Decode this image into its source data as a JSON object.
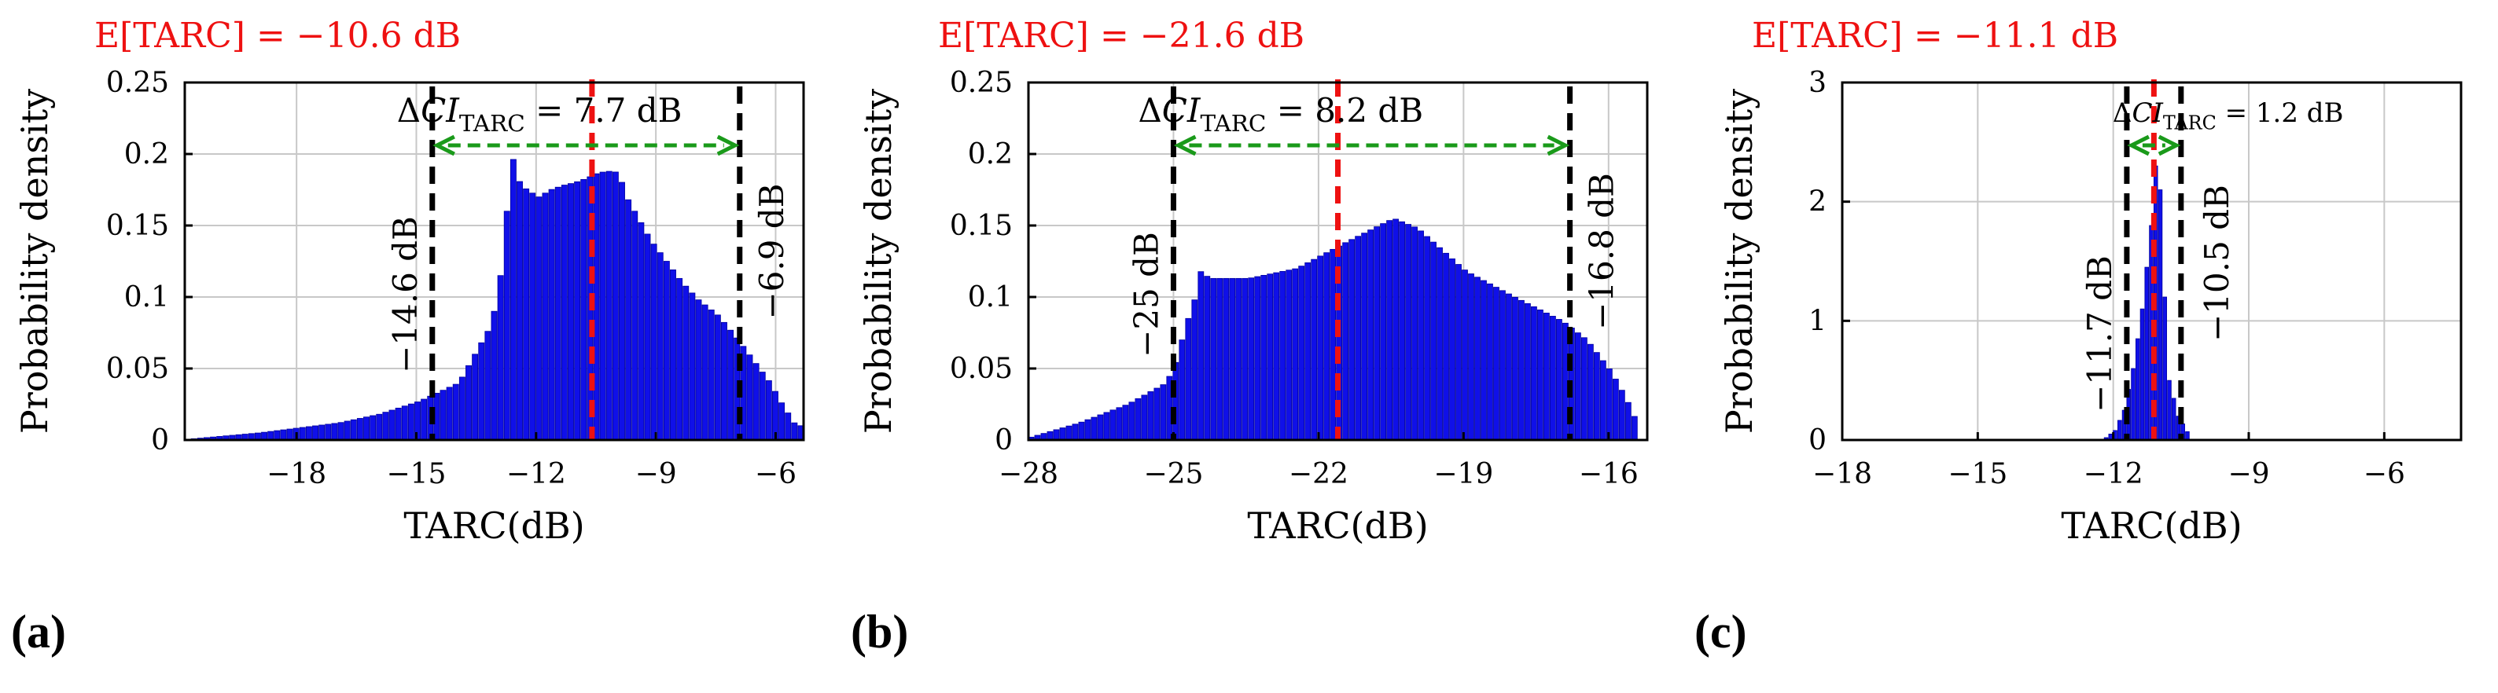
{
  "figure": {
    "panel_labels": [
      "(a)",
      "(b)",
      "(c)"
    ]
  },
  "chart_data": [
    {
      "type": "bar",
      "panel": "(a)",
      "title": "E[TARC] = −10.6 dB",
      "xlabel": "TARC(dB)",
      "ylabel": "Probability density",
      "xlim": [
        -20.8,
        -5.3
      ],
      "ylim": [
        0,
        0.25
      ],
      "xticks": [
        -18,
        -15,
        -12,
        -9,
        -6
      ],
      "xtick_labels": [
        "−18",
        "−15",
        "−12",
        "−9",
        "−6"
      ],
      "yticks": [
        0,
        0.05,
        0.1,
        0.15,
        0.2,
        0.25
      ],
      "ytick_labels": [
        "0",
        "0.05",
        "0.1",
        "0.15",
        "0.2",
        "0.25"
      ],
      "bar_range": [
        -20.8,
        -5.5
      ],
      "bar_width": 0.16,
      "envelope": [
        [
          -20.8,
          0.0005
        ],
        [
          -19,
          0.005
        ],
        [
          -17,
          0.012
        ],
        [
          -16,
          0.018
        ],
        [
          -15,
          0.027
        ],
        [
          -14,
          0.04
        ],
        [
          -13.6,
          0.06
        ],
        [
          -13.2,
          0.08
        ],
        [
          -13.0,
          0.105
        ],
        [
          -12.9,
          0.13
        ],
        [
          -12.8,
          0.16
        ],
        [
          -12.7,
          0.205
        ],
        [
          -12.55,
          0.183
        ],
        [
          -12.3,
          0.175
        ],
        [
          -12.0,
          0.17
        ],
        [
          -11.7,
          0.175
        ],
        [
          -11.4,
          0.178
        ],
        [
          -11.1,
          0.18
        ],
        [
          -10.8,
          0.183
        ],
        [
          -10.5,
          0.187
        ],
        [
          -10.2,
          0.188
        ],
        [
          -10.0,
          0.187
        ],
        [
          -9.8,
          0.17
        ],
        [
          -9.5,
          0.155
        ],
        [
          -9.2,
          0.14
        ],
        [
          -8.8,
          0.125
        ],
        [
          -8.4,
          0.11
        ],
        [
          -8.0,
          0.098
        ],
        [
          -7.5,
          0.087
        ],
        [
          -7.0,
          0.07
        ],
        [
          -6.6,
          0.055
        ],
        [
          -6.2,
          0.04
        ],
        [
          -5.9,
          0.025
        ],
        [
          -5.6,
          0.012
        ],
        [
          -5.5,
          0.01
        ]
      ],
      "mean": {
        "value": -10.6
      },
      "ci_lower": {
        "value": -14.6,
        "label": "−14.6 dB"
      },
      "ci_upper": {
        "value": -6.9,
        "label": "−6.9 dB"
      },
      "ci_width_label": {
        "prefix": "Δ",
        "var": "CI",
        "sub": "TARC",
        "value": " = 7.7 dB"
      }
    },
    {
      "type": "bar",
      "panel": "(b)",
      "title": "E[TARC] = −21.6 dB",
      "xlabel": "TARC(dB)",
      "ylabel": "Probability density",
      "xlim": [
        -28,
        -15.2
      ],
      "ylim": [
        0,
        0.25
      ],
      "xticks": [
        -28,
        -25,
        -22,
        -19,
        -16
      ],
      "xtick_labels": [
        "−28",
        "−25",
        "−22",
        "−19",
        "−16"
      ],
      "yticks": [
        0,
        0.05,
        0.1,
        0.15,
        0.2,
        0.25
      ],
      "ytick_labels": [
        "0",
        "0.05",
        "0.1",
        "0.15",
        "0.2",
        "0.25"
      ],
      "bar_range": [
        -28,
        -15.5
      ],
      "bar_width": 0.13,
      "envelope": [
        [
          -28,
          0.002
        ],
        [
          -27,
          0.012
        ],
        [
          -26,
          0.025
        ],
        [
          -25.2,
          0.04
        ],
        [
          -25,
          0.055
        ],
        [
          -24.8,
          0.08
        ],
        [
          -24.6,
          0.1
        ],
        [
          -24.5,
          0.118
        ],
        [
          -24.3,
          0.113
        ],
        [
          -23.5,
          0.113
        ],
        [
          -22.5,
          0.12
        ],
        [
          -21.5,
          0.138
        ],
        [
          -20.8,
          0.15
        ],
        [
          -20.5,
          0.155
        ],
        [
          -20.0,
          0.148
        ],
        [
          -19.5,
          0.133
        ],
        [
          -19.0,
          0.118
        ],
        [
          -18.0,
          0.1
        ],
        [
          -17.0,
          0.083
        ],
        [
          -16.5,
          0.07
        ],
        [
          -16.0,
          0.048
        ],
        [
          -15.7,
          0.03
        ],
        [
          -15.5,
          0.015
        ]
      ],
      "mean": {
        "value": -21.6
      },
      "ci_lower": {
        "value": -25,
        "label": "−25 dB"
      },
      "ci_upper": {
        "value": -16.8,
        "label": "−16.8 dB"
      },
      "ci_width_label": {
        "prefix": "Δ",
        "var": "CI",
        "sub": "TARC",
        "value": " = 8.2 dB"
      }
    },
    {
      "type": "bar",
      "panel": "(c)",
      "title": "E[TARC] = −11.1 dB",
      "xlabel": "TARC(dB)",
      "ylabel": "Probability density",
      "xlim": [
        -18,
        -4.3
      ],
      "ylim": [
        0,
        3
      ],
      "xticks": [
        -18,
        -15,
        -12,
        -9,
        -6
      ],
      "xtick_labels": [
        "−18",
        "−15",
        "−12",
        "−9",
        "−6"
      ],
      "yticks": [
        0,
        1,
        2,
        3
      ],
      "ytick_labels": [
        "0",
        "1",
        "2",
        "3"
      ],
      "bar_range": [
        -12.2,
        -10.4
      ],
      "bar_width": 0.1,
      "envelope": [
        [
          -12.2,
          0.02
        ],
        [
          -12.0,
          0.08
        ],
        [
          -11.8,
          0.25
        ],
        [
          -11.6,
          0.6
        ],
        [
          -11.4,
          1.1
        ],
        [
          -11.2,
          1.8
        ],
        [
          -11.1,
          2.3
        ],
        [
          -11.0,
          2.1
        ],
        [
          -10.9,
          1.2
        ],
        [
          -10.8,
          0.5
        ],
        [
          -10.6,
          0.2
        ],
        [
          -10.4,
          0.07
        ]
      ],
      "mean": {
        "value": -11.1
      },
      "ci_lower": {
        "value": -11.7,
        "label": "−11.7 dB"
      },
      "ci_upper": {
        "value": -10.5,
        "label": "−10.5 dB"
      },
      "ci_width_label": {
        "prefix": "Δ",
        "var": "CI",
        "sub": "TARC",
        "value": " = 1.2 dB"
      }
    }
  ],
  "colors": {
    "bars": "#1010e8",
    "bar_edge": "#0000a0",
    "mean": "#ee1111",
    "ci": "#000000",
    "arrow": "#1a9a1a",
    "grid": "#c8c8c8",
    "title": "#ee1111"
  }
}
